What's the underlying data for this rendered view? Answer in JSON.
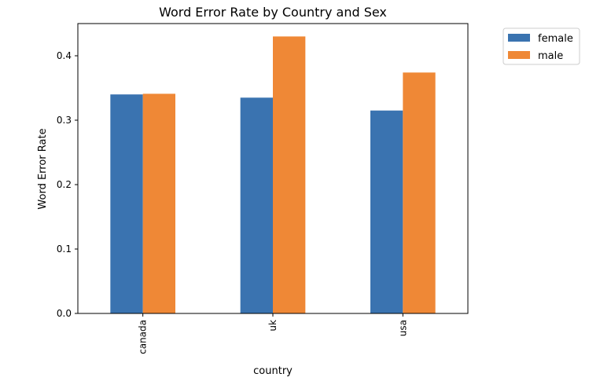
{
  "chart_data": {
    "type": "bar",
    "title": "Word Error Rate by Country and Sex",
    "xlabel": "country",
    "ylabel": "Word Error Rate",
    "categories": [
      "canada",
      "uk",
      "usa"
    ],
    "series": [
      {
        "name": "female",
        "values": [
          0.34,
          0.335,
          0.315
        ],
        "color": "#3a73b0"
      },
      {
        "name": "male",
        "values": [
          0.341,
          0.43,
          0.374
        ],
        "color": "#ef8836"
      }
    ],
    "ylim": [
      0,
      0.45
    ],
    "yticks": [
      "0.0",
      "0.1",
      "0.2",
      "0.3",
      "0.4"
    ],
    "grid": false,
    "legend_position": "outside-top-right"
  }
}
